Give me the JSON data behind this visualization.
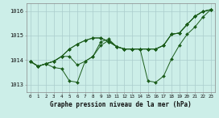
{
  "background_color": "#cceee8",
  "plot_bg_color": "#cceee8",
  "grid_color": "#aacccc",
  "line_color": "#1a5c1a",
  "title": "Graphe pression niveau de la mer (hPa)",
  "xlim": [
    -0.5,
    23.5
  ],
  "ylim": [
    1012.7,
    1016.3
  ],
  "yticks": [
    1013,
    1014,
    1015,
    1016
  ],
  "xticks": [
    0,
    1,
    2,
    3,
    4,
    5,
    6,
    7,
    8,
    9,
    10,
    11,
    12,
    13,
    14,
    15,
    16,
    17,
    18,
    19,
    20,
    21,
    22,
    23
  ],
  "series": [
    [
      1013.95,
      1013.75,
      1013.85,
      1013.7,
      1013.65,
      1013.15,
      1013.1,
      1013.95,
      1014.15,
      1014.75,
      1014.85,
      1014.55,
      1014.45,
      1014.45,
      1014.45,
      1013.15,
      1013.1,
      1013.35,
      1014.05,
      1014.6,
      1015.05,
      1015.35,
      1015.75,
      1016.05
    ],
    [
      1013.95,
      1013.75,
      1013.85,
      1013.95,
      1014.15,
      1014.45,
      1014.65,
      1014.8,
      1014.9,
      1014.9,
      1014.75,
      1014.55,
      1014.45,
      1014.45,
      1014.45,
      1014.45,
      1014.45,
      1014.6,
      1015.05,
      1015.1,
      1015.45,
      1015.78,
      1015.98,
      1016.05
    ],
    [
      1013.95,
      1013.75,
      1013.85,
      1013.95,
      1014.15,
      1014.45,
      1014.65,
      1014.8,
      1014.9,
      1014.9,
      1014.75,
      1014.55,
      1014.45,
      1014.45,
      1014.45,
      1014.45,
      1014.45,
      1014.6,
      1015.05,
      1015.1,
      1015.45,
      1015.78,
      1015.98,
      1016.05
    ],
    [
      1013.95,
      1013.75,
      1013.85,
      1013.95,
      1014.15,
      1014.15,
      1013.8,
      1013.95,
      1014.15,
      1014.6,
      1014.8,
      1014.55,
      1014.45,
      1014.45,
      1014.45,
      1014.45,
      1014.45,
      1014.6,
      1015.05,
      1015.1,
      1015.45,
      1015.78,
      1015.98,
      1016.05
    ]
  ]
}
